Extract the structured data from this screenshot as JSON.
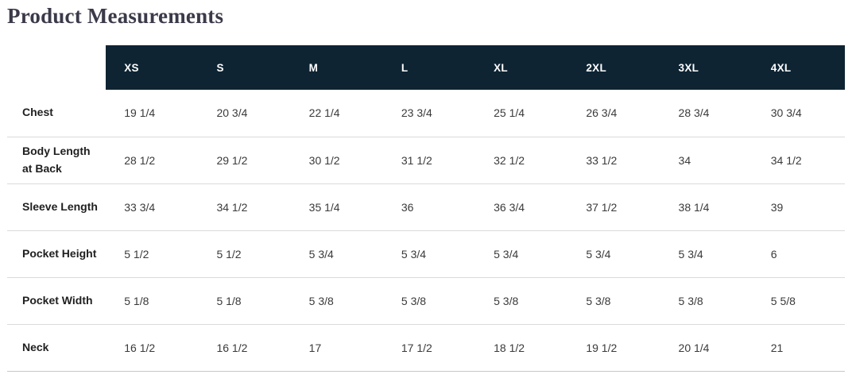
{
  "page": {
    "title": "Product Measurements"
  },
  "table": {
    "sizes": [
      "XS",
      "S",
      "M",
      "L",
      "XL",
      "2XL",
      "3XL",
      "4XL"
    ],
    "rows": [
      {
        "label": "Chest",
        "values": [
          "19 1/4",
          "20 3/4",
          "22 1/4",
          "23 3/4",
          "25 1/4",
          "26 3/4",
          "28 3/4",
          "30 3/4"
        ]
      },
      {
        "label": "Body Length at Back",
        "values": [
          "28 1/2",
          "29 1/2",
          "30 1/2",
          "31 1/2",
          "32 1/2",
          "33 1/2",
          "34",
          "34 1/2"
        ]
      },
      {
        "label": "Sleeve Length",
        "values": [
          "33 3/4",
          "34 1/2",
          "35 1/4",
          "36",
          "36 3/4",
          "37 1/2",
          "38 1/4",
          "39"
        ]
      },
      {
        "label": "Pocket Height",
        "values": [
          "5 1/2",
          "5 1/2",
          "5 3/4",
          "5 3/4",
          "5 3/4",
          "5 3/4",
          "5 3/4",
          "6"
        ]
      },
      {
        "label": "Pocket Width",
        "values": [
          "5 1/8",
          "5 1/8",
          "5 3/8",
          "5 3/8",
          "5 3/8",
          "5 3/8",
          "5 3/8",
          "5 5/8"
        ]
      },
      {
        "label": "Neck",
        "values": [
          "16 1/2",
          "16 1/2",
          "17",
          "17 1/2",
          "18 1/2",
          "19 1/2",
          "20 1/4",
          "21"
        ]
      }
    ]
  },
  "colors": {
    "header_bg": "#0e2433",
    "header_text": "#ffffff",
    "title_text": "#3b3a49",
    "label_text": "#1f1f1f",
    "value_text": "#3a3a3a",
    "divider": "#dadada"
  }
}
